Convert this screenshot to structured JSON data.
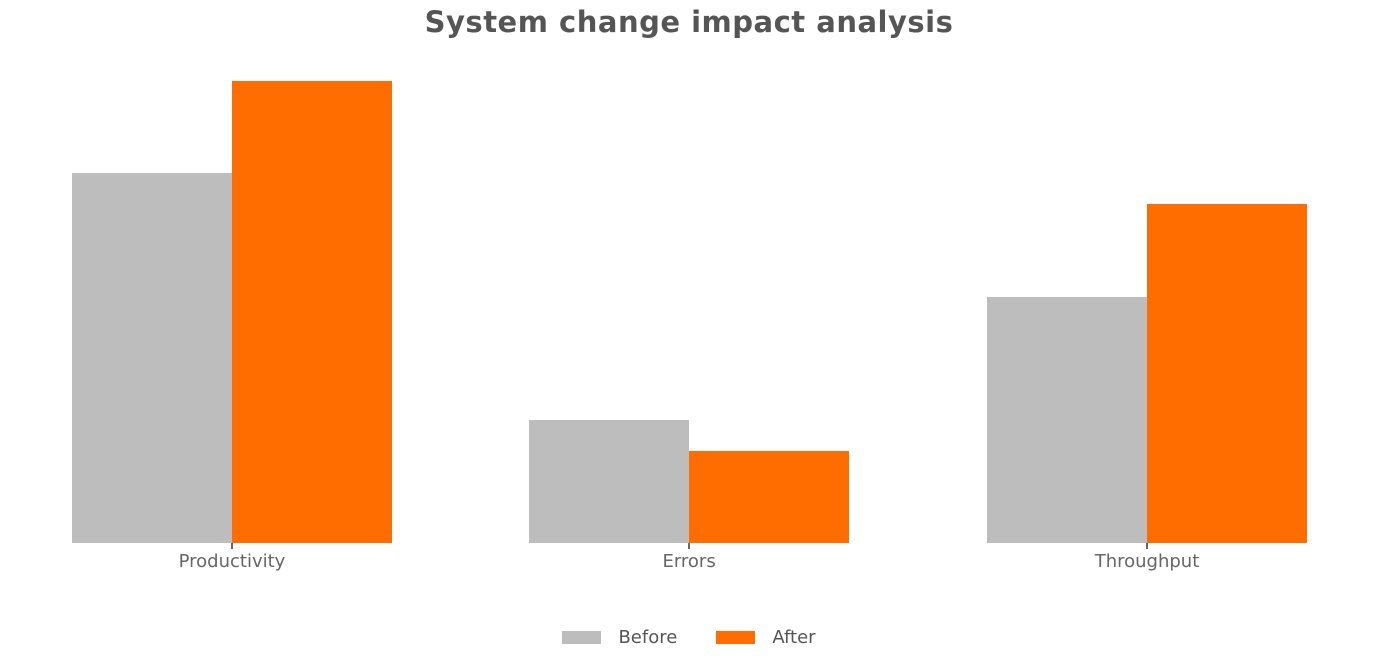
{
  "colors": {
    "background": "#ffffff",
    "title_text": "#555555",
    "label_text": "#666666",
    "tick": "#666666",
    "before_series": "#bdbdbd",
    "after_series": "#ff6d00"
  },
  "chart_data": {
    "type": "bar",
    "title": "System change impact analysis",
    "categories": [
      "Productivity",
      "Errors",
      "Throughput"
    ],
    "series": [
      {
        "name": "Before",
        "color": "#bdbdbd",
        "values": [
          72,
          24,
          48
        ]
      },
      {
        "name": "After",
        "color": "#ff6d00",
        "values": [
          90,
          18,
          66
        ]
      }
    ],
    "xlabel": "",
    "ylabel": "",
    "ylim": [
      0,
      94.5
    ],
    "grid": false,
    "axes_visible": false,
    "legend_position": "bottom-center"
  }
}
